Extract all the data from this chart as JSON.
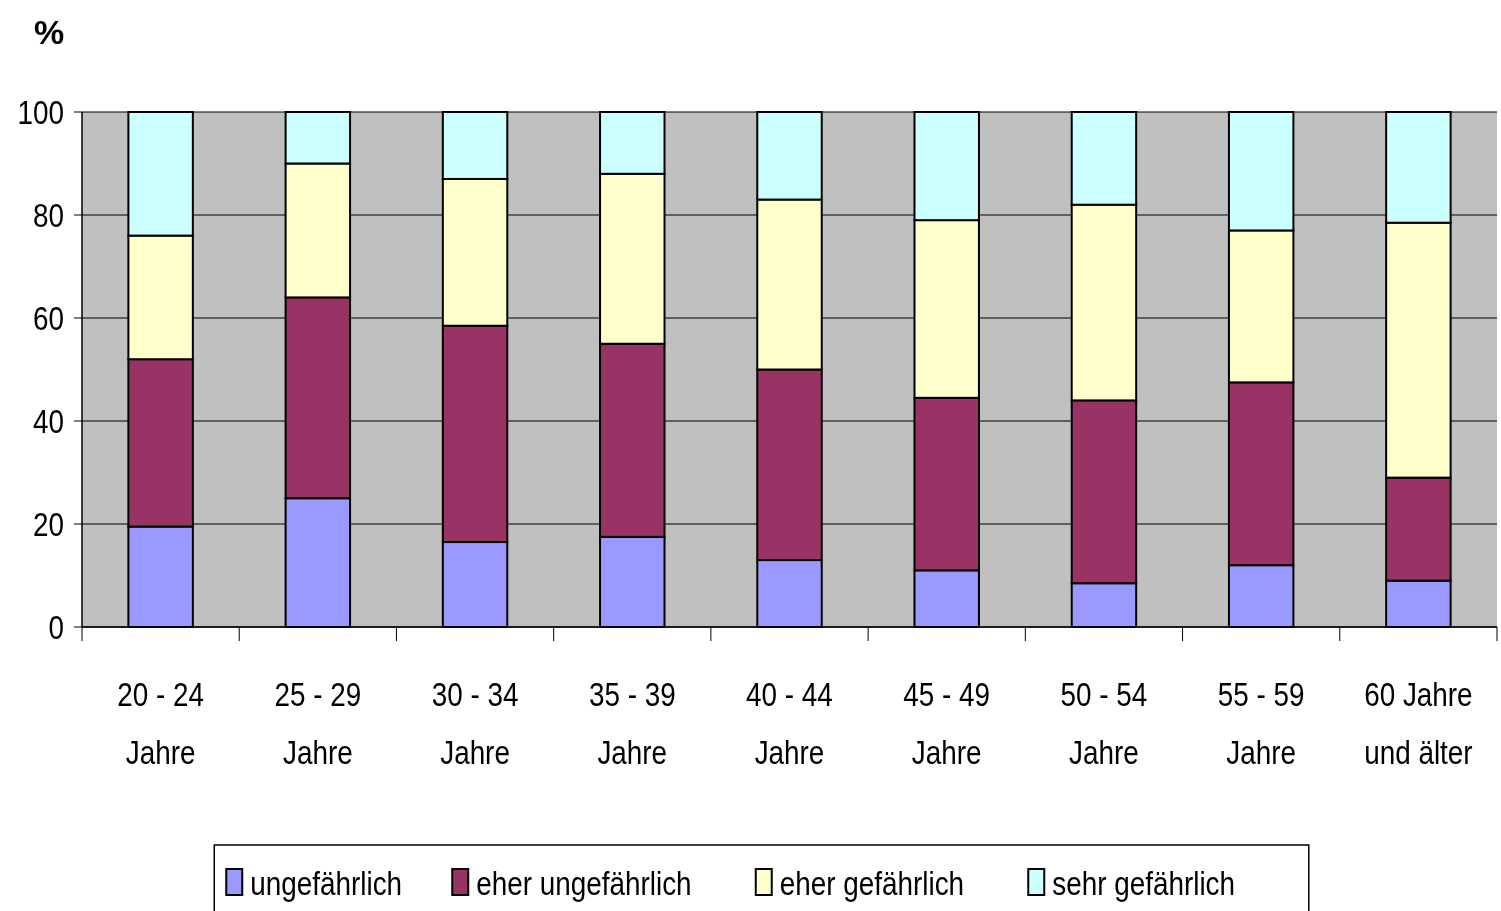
{
  "chart_data": {
    "type": "bar",
    "ylabel": "%",
    "stacked": true,
    "categories": [
      "20 - 24\nJahre",
      "25 - 29\nJahre",
      "30 - 34\nJahre",
      "35 - 39\nJahre",
      "40 - 44\nJahre",
      "45 - 49\nJahre",
      "50 - 54\nJahre",
      "55 - 59\nJahre",
      "60 Jahre\nund älter"
    ],
    "series": [
      {
        "name": "ungefährlich",
        "color": "#9999ff",
        "values": [
          19.5,
          25,
          16.5,
          17.5,
          13,
          11,
          8.5,
          12,
          9
        ]
      },
      {
        "name": "eher ungefährlich",
        "color": "#993366",
        "values": [
          32.5,
          39,
          42,
          37.5,
          37,
          33.5,
          35.5,
          35.5,
          20
        ]
      },
      {
        "name": "eher gefährlich",
        "color": "#ffffcc",
        "values": [
          24,
          26,
          28.5,
          33,
          33,
          34.5,
          38,
          29.5,
          49.5
        ]
      },
      {
        "name": "sehr gefährlich",
        "color": "#ccffff",
        "values": [
          24,
          10,
          13,
          12,
          17,
          21,
          18,
          23,
          21.5
        ]
      }
    ],
    "ylim": [
      0,
      100
    ],
    "yticks": [
      0,
      20,
      40,
      60,
      80,
      100
    ],
    "grid": "y",
    "legend": "bottom"
  }
}
